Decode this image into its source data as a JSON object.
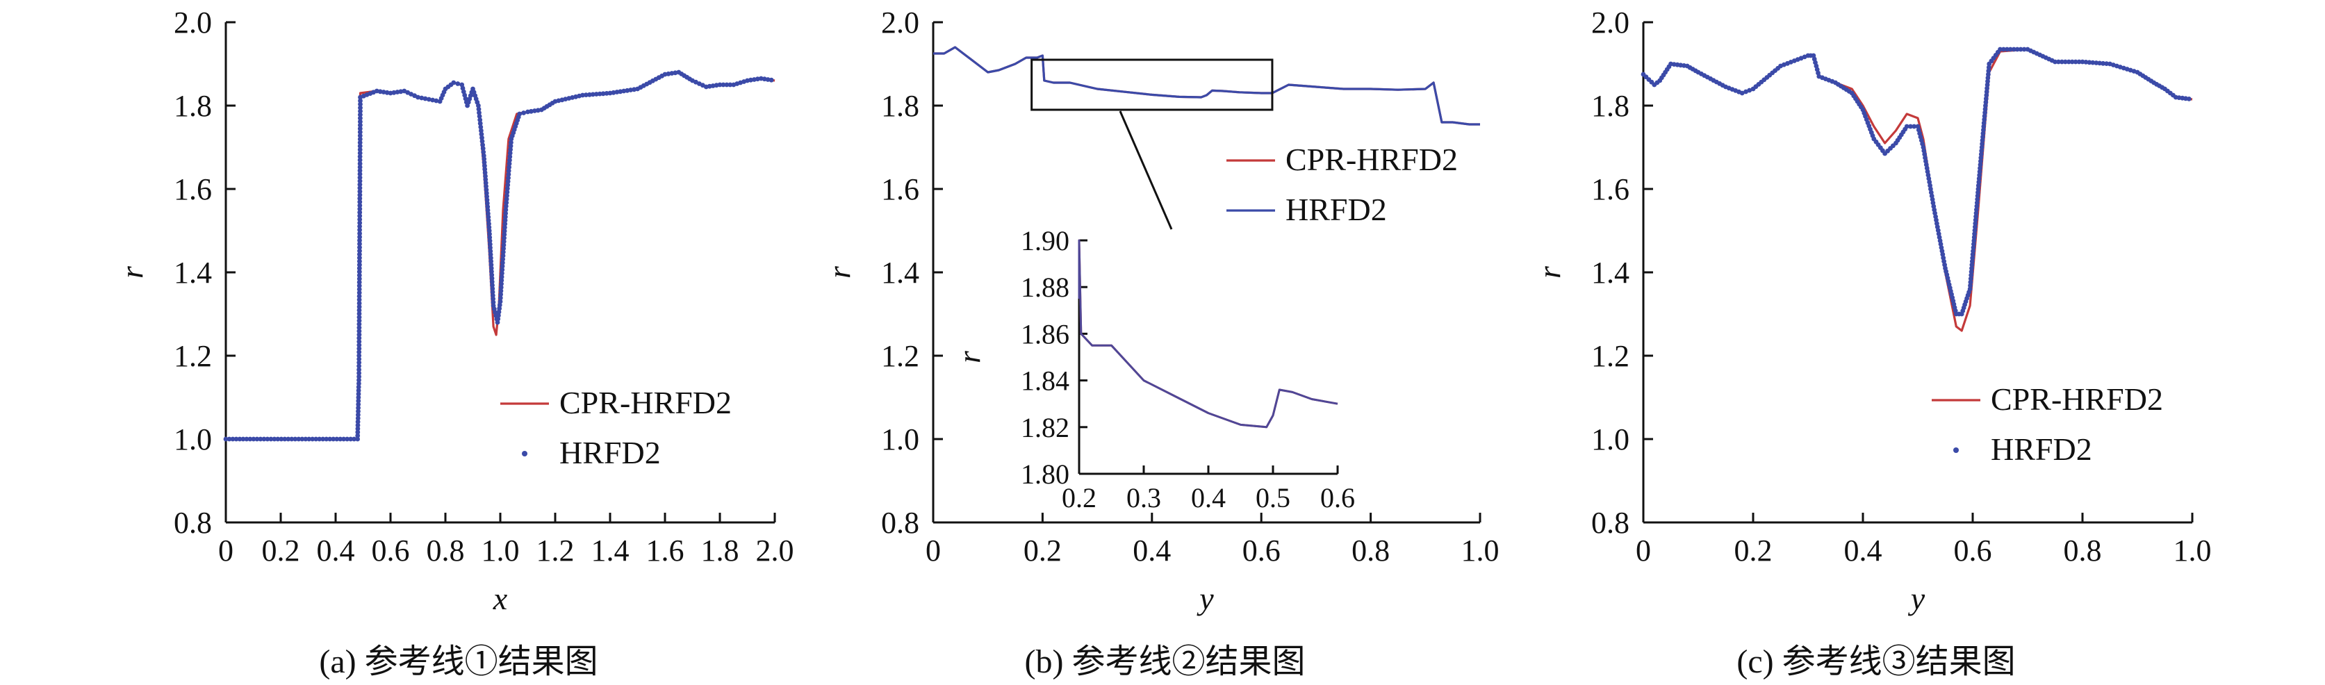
{
  "figure": {
    "colors": {
      "cpr": "#c43a3a",
      "hrfd": "#3b4aa8",
      "axis": "#111111"
    }
  },
  "chart_data": [
    {
      "type": "line",
      "panel": "a",
      "caption": "(a) 参考线①结果图",
      "xlabel": "x",
      "ylabel": "r",
      "xlim": [
        0,
        2.0
      ],
      "ylim": [
        0.8,
        2.0
      ],
      "xticks": [
        0,
        0.2,
        0.4,
        0.6,
        0.8,
        1.0,
        1.2,
        1.4,
        1.6,
        1.8,
        2.0
      ],
      "xtick_labels": [
        "0",
        "0.2",
        "0.4",
        "0.6",
        "0.8",
        "1.0",
        "1.2",
        "1.4",
        "1.6",
        "1.8",
        "2.0"
      ],
      "yticks": [
        0.8,
        1.0,
        1.2,
        1.4,
        1.6,
        1.8,
        2.0
      ],
      "ytick_labels": [
        "0.8",
        "1.0",
        "1.2",
        "1.4",
        "1.6",
        "1.8",
        "2.0"
      ],
      "legend": {
        "placement": "bottom-right"
      },
      "series": [
        {
          "name": "CPR-HRFD2",
          "style": "line",
          "color": "#c43a3a",
          "points": [
            [
              0,
              1.0
            ],
            [
              0.48,
              1.0
            ],
            [
              0.485,
              1.2
            ],
            [
              0.49,
              1.83
            ],
            [
              0.55,
              1.835
            ],
            [
              0.6,
              1.83
            ],
            [
              0.65,
              1.835
            ],
            [
              0.7,
              1.82
            ],
            [
              0.78,
              1.81
            ],
            [
              0.8,
              1.84
            ],
            [
              0.83,
              1.855
            ],
            [
              0.86,
              1.85
            ],
            [
              0.88,
              1.8
            ],
            [
              0.9,
              1.84
            ],
            [
              0.92,
              1.8
            ],
            [
              0.94,
              1.65
            ],
            [
              0.96,
              1.45
            ],
            [
              0.975,
              1.27
            ],
            [
              0.985,
              1.25
            ],
            [
              0.995,
              1.32
            ],
            [
              1.01,
              1.55
            ],
            [
              1.03,
              1.72
            ],
            [
              1.06,
              1.78
            ],
            [
              1.1,
              1.785
            ],
            [
              1.15,
              1.79
            ],
            [
              1.2,
              1.81
            ],
            [
              1.3,
              1.825
            ],
            [
              1.4,
              1.83
            ],
            [
              1.5,
              1.84
            ],
            [
              1.6,
              1.875
            ],
            [
              1.65,
              1.88
            ],
            [
              1.7,
              1.86
            ],
            [
              1.75,
              1.845
            ],
            [
              1.8,
              1.85
            ],
            [
              1.85,
              1.85
            ],
            [
              1.9,
              1.86
            ],
            [
              1.95,
              1.865
            ],
            [
              2.0,
              1.86
            ]
          ]
        },
        {
          "name": "HRFD2",
          "style": "markers",
          "color": "#3b4aa8",
          "points": [
            [
              0,
              1.0
            ],
            [
              0.48,
              1.0
            ],
            [
              0.485,
              1.15
            ],
            [
              0.49,
              1.82
            ],
            [
              0.55,
              1.835
            ],
            [
              0.6,
              1.83
            ],
            [
              0.65,
              1.835
            ],
            [
              0.7,
              1.82
            ],
            [
              0.78,
              1.81
            ],
            [
              0.8,
              1.84
            ],
            [
              0.83,
              1.855
            ],
            [
              0.86,
              1.85
            ],
            [
              0.88,
              1.8
            ],
            [
              0.9,
              1.84
            ],
            [
              0.92,
              1.8
            ],
            [
              0.94,
              1.68
            ],
            [
              0.96,
              1.5
            ],
            [
              0.975,
              1.32
            ],
            [
              0.99,
              1.28
            ],
            [
              1.0,
              1.33
            ],
            [
              1.02,
              1.55
            ],
            [
              1.04,
              1.72
            ],
            [
              1.07,
              1.78
            ],
            [
              1.1,
              1.785
            ],
            [
              1.15,
              1.79
            ],
            [
              1.2,
              1.81
            ],
            [
              1.3,
              1.825
            ],
            [
              1.4,
              1.83
            ],
            [
              1.5,
              1.84
            ],
            [
              1.6,
              1.875
            ],
            [
              1.65,
              1.88
            ],
            [
              1.7,
              1.86
            ],
            [
              1.75,
              1.845
            ],
            [
              1.8,
              1.85
            ],
            [
              1.85,
              1.85
            ],
            [
              1.9,
              1.86
            ],
            [
              1.95,
              1.865
            ],
            [
              2.0,
              1.86
            ]
          ]
        }
      ]
    },
    {
      "type": "line",
      "panel": "b",
      "caption": "(b) 参考线②结果图",
      "xlabel": "y",
      "ylabel": "r",
      "xlim": [
        0,
        1.0
      ],
      "ylim": [
        0.8,
        2.0
      ],
      "xticks": [
        0,
        0.2,
        0.4,
        0.6,
        0.8,
        1.0
      ],
      "xtick_labels": [
        "0",
        "0.2",
        "0.4",
        "0.6",
        "0.8",
        "1.0"
      ],
      "yticks": [
        0.8,
        1.0,
        1.2,
        1.4,
        1.6,
        1.8,
        2.0
      ],
      "ytick_labels": [
        "0.8",
        "1.0",
        "1.2",
        "1.4",
        "1.6",
        "1.8",
        "2.0"
      ],
      "legend": {
        "placement": "upper-right"
      },
      "zoom_box": {
        "x": [
          0.18,
          0.62
        ],
        "y": [
          1.79,
          1.91
        ]
      },
      "inset": {
        "xlim": [
          0.2,
          0.6
        ],
        "ylim": [
          1.8,
          1.9
        ],
        "xticks": [
          0.2,
          0.3,
          0.4,
          0.5,
          0.6
        ],
        "xtick_labels": [
          "0.2",
          "0.3",
          "0.4",
          "0.5",
          "0.6"
        ],
        "yticks": [
          1.8,
          1.82,
          1.84,
          1.86,
          1.88,
          1.9
        ],
        "ytick_labels": [
          "1.80",
          "1.82",
          "1.84",
          "1.86",
          "1.88",
          "1.90"
        ],
        "ylabel": "r"
      },
      "series": [
        {
          "name": "CPR-HRFD2",
          "style": "line",
          "color": "#c43a3a",
          "points": [
            [
              0,
              1.925
            ],
            [
              0.02,
              1.925
            ],
            [
              0.04,
              1.94
            ],
            [
              0.06,
              1.92
            ],
            [
              0.08,
              1.9
            ],
            [
              0.1,
              1.88
            ],
            [
              0.12,
              1.885
            ],
            [
              0.15,
              1.9
            ],
            [
              0.17,
              1.915
            ],
            [
              0.19,
              1.915
            ],
            [
              0.2,
              1.92
            ],
            [
              0.203,
              1.86
            ],
            [
              0.22,
              1.855
            ],
            [
              0.25,
              1.855
            ],
            [
              0.3,
              1.84
            ],
            [
              0.35,
              1.833
            ],
            [
              0.4,
              1.826
            ],
            [
              0.45,
              1.821
            ],
            [
              0.49,
              1.82
            ],
            [
              0.5,
              1.825
            ],
            [
              0.51,
              1.836
            ],
            [
              0.53,
              1.835
            ],
            [
              0.56,
              1.832
            ],
            [
              0.6,
              1.83
            ],
            [
              0.62,
              1.83
            ],
            [
              0.65,
              1.85
            ],
            [
              0.7,
              1.845
            ],
            [
              0.75,
              1.84
            ],
            [
              0.8,
              1.84
            ],
            [
              0.85,
              1.838
            ],
            [
              0.9,
              1.84
            ],
            [
              0.915,
              1.855
            ],
            [
              0.93,
              1.76
            ],
            [
              0.95,
              1.76
            ],
            [
              0.98,
              1.755
            ],
            [
              1.0,
              1.755
            ]
          ]
        },
        {
          "name": "HRFD2",
          "style": "line",
          "color": "#3b4aa8",
          "points": [
            [
              0,
              1.925
            ],
            [
              0.02,
              1.925
            ],
            [
              0.04,
              1.94
            ],
            [
              0.06,
              1.92
            ],
            [
              0.08,
              1.9
            ],
            [
              0.1,
              1.88
            ],
            [
              0.12,
              1.885
            ],
            [
              0.15,
              1.9
            ],
            [
              0.17,
              1.915
            ],
            [
              0.19,
              1.915
            ],
            [
              0.2,
              1.92
            ],
            [
              0.203,
              1.86
            ],
            [
              0.22,
              1.855
            ],
            [
              0.25,
              1.855
            ],
            [
              0.3,
              1.84
            ],
            [
              0.35,
              1.833
            ],
            [
              0.4,
              1.826
            ],
            [
              0.45,
              1.821
            ],
            [
              0.49,
              1.82
            ],
            [
              0.5,
              1.825
            ],
            [
              0.51,
              1.836
            ],
            [
              0.53,
              1.835
            ],
            [
              0.56,
              1.832
            ],
            [
              0.6,
              1.83
            ],
            [
              0.62,
              1.83
            ],
            [
              0.65,
              1.85
            ],
            [
              0.7,
              1.845
            ],
            [
              0.75,
              1.84
            ],
            [
              0.8,
              1.84
            ],
            [
              0.85,
              1.838
            ],
            [
              0.9,
              1.84
            ],
            [
              0.915,
              1.855
            ],
            [
              0.93,
              1.76
            ],
            [
              0.95,
              1.76
            ],
            [
              0.98,
              1.755
            ],
            [
              1.0,
              1.755
            ]
          ]
        }
      ]
    },
    {
      "type": "line",
      "panel": "c",
      "caption": "(c) 参考线③结果图",
      "xlabel": "y",
      "ylabel": "r",
      "xlim": [
        0,
        1.0
      ],
      "ylim": [
        0.8,
        2.0
      ],
      "xticks": [
        0,
        0.2,
        0.4,
        0.6,
        0.8,
        1.0
      ],
      "xtick_labels": [
        "0",
        "0.2",
        "0.4",
        "0.6",
        "0.8",
        "1.0"
      ],
      "yticks": [
        0.8,
        1.0,
        1.2,
        1.4,
        1.6,
        1.8,
        2.0
      ],
      "ytick_labels": [
        "0.8",
        "1.0",
        "1.2",
        "1.4",
        "1.6",
        "1.8",
        "2.0"
      ],
      "legend": {
        "placement": "bottom-right"
      },
      "series": [
        {
          "name": "CPR-HRFD2",
          "style": "line",
          "color": "#c43a3a",
          "points": [
            [
              0,
              1.875
            ],
            [
              0.02,
              1.85
            ],
            [
              0.03,
              1.86
            ],
            [
              0.05,
              1.9
            ],
            [
              0.08,
              1.895
            ],
            [
              0.1,
              1.88
            ],
            [
              0.15,
              1.845
            ],
            [
              0.18,
              1.83
            ],
            [
              0.2,
              1.84
            ],
            [
              0.25,
              1.895
            ],
            [
              0.3,
              1.92
            ],
            [
              0.31,
              1.92
            ],
            [
              0.32,
              1.87
            ],
            [
              0.35,
              1.855
            ],
            [
              0.38,
              1.84
            ],
            [
              0.4,
              1.8
            ],
            [
              0.42,
              1.75
            ],
            [
              0.44,
              1.71
            ],
            [
              0.46,
              1.74
            ],
            [
              0.48,
              1.78
            ],
            [
              0.5,
              1.77
            ],
            [
              0.51,
              1.72
            ],
            [
              0.53,
              1.55
            ],
            [
              0.55,
              1.4
            ],
            [
              0.57,
              1.27
            ],
            [
              0.58,
              1.26
            ],
            [
              0.595,
              1.32
            ],
            [
              0.61,
              1.55
            ],
            [
              0.63,
              1.88
            ],
            [
              0.65,
              1.93
            ],
            [
              0.7,
              1.935
            ],
            [
              0.75,
              1.905
            ],
            [
              0.8,
              1.905
            ],
            [
              0.85,
              1.9
            ],
            [
              0.9,
              1.88
            ],
            [
              0.93,
              1.855
            ],
            [
              0.95,
              1.84
            ],
            [
              0.97,
              1.82
            ],
            [
              1.0,
              1.815
            ]
          ]
        },
        {
          "name": "HRFD2",
          "style": "markers",
          "color": "#3b4aa8",
          "points": [
            [
              0,
              1.875
            ],
            [
              0.02,
              1.85
            ],
            [
              0.03,
              1.86
            ],
            [
              0.05,
              1.9
            ],
            [
              0.08,
              1.895
            ],
            [
              0.1,
              1.88
            ],
            [
              0.15,
              1.845
            ],
            [
              0.18,
              1.83
            ],
            [
              0.2,
              1.84
            ],
            [
              0.25,
              1.895
            ],
            [
              0.3,
              1.92
            ],
            [
              0.31,
              1.92
            ],
            [
              0.32,
              1.87
            ],
            [
              0.35,
              1.855
            ],
            [
              0.38,
              1.83
            ],
            [
              0.4,
              1.79
            ],
            [
              0.42,
              1.72
            ],
            [
              0.44,
              1.685
            ],
            [
              0.46,
              1.71
            ],
            [
              0.48,
              1.75
            ],
            [
              0.5,
              1.75
            ],
            [
              0.51,
              1.7
            ],
            [
              0.53,
              1.55
            ],
            [
              0.55,
              1.41
            ],
            [
              0.57,
              1.3
            ],
            [
              0.58,
              1.3
            ],
            [
              0.595,
              1.36
            ],
            [
              0.61,
              1.6
            ],
            [
              0.63,
              1.9
            ],
            [
              0.65,
              1.935
            ],
            [
              0.7,
              1.935
            ],
            [
              0.75,
              1.905
            ],
            [
              0.8,
              1.905
            ],
            [
              0.85,
              1.9
            ],
            [
              0.9,
              1.88
            ],
            [
              0.93,
              1.855
            ],
            [
              0.95,
              1.84
            ],
            [
              0.97,
              1.82
            ],
            [
              1.0,
              1.815
            ]
          ]
        }
      ]
    }
  ]
}
